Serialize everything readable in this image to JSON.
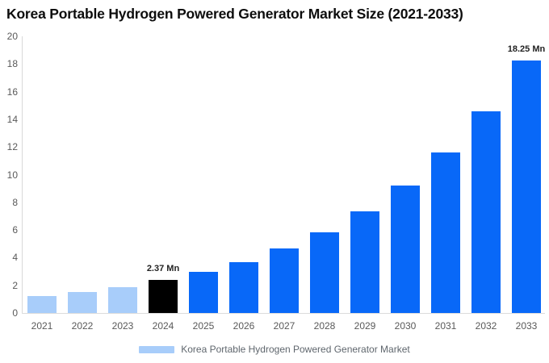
{
  "title": "Korea Portable Hydrogen Powered Generator Market Size (2021-2033)",
  "legend": {
    "label": "Korea Portable Hydrogen Powered Generator Market"
  },
  "colors": {
    "historical_bar": "#a8cdfa",
    "base_year_bar": "#000000",
    "forecast_bar": "#0868f8",
    "axis_line": "#d9d9d9",
    "tick_text": "#595959",
    "value_label_text": "#222222",
    "legend_text": "#5f666d",
    "title_text": "#0d0d0d"
  },
  "chart_data": {
    "type": "bar",
    "title": "Korea Portable Hydrogen Powered Generator Market Size (2021-2033)",
    "xlabel": "",
    "ylabel": "",
    "unit": "Mn",
    "categories": [
      "2021",
      "2022",
      "2023",
      "2024",
      "2025",
      "2026",
      "2027",
      "2028",
      "2029",
      "2030",
      "2031",
      "2032",
      "2033"
    ],
    "values": [
      1.2,
      1.5,
      1.85,
      2.37,
      2.95,
      3.7,
      4.65,
      5.85,
      7.35,
      9.2,
      11.6,
      14.55,
      18.25
    ],
    "bar_colors": [
      "#a8cdfa",
      "#a8cdfa",
      "#a8cdfa",
      "#000000",
      "#0868f8",
      "#0868f8",
      "#0868f8",
      "#0868f8",
      "#0868f8",
      "#0868f8",
      "#0868f8",
      "#0868f8",
      "#0868f8"
    ],
    "value_labels": [
      "",
      "",
      "",
      "2.37 Mn",
      "",
      "",
      "",
      "",
      "",
      "",
      "",
      "",
      "18.25 Mn"
    ],
    "ylim": [
      0,
      20
    ],
    "yticks": [
      0,
      2,
      4,
      6,
      8,
      10,
      12,
      14,
      16,
      18,
      20
    ],
    "grid": false,
    "legend_position": "bottom",
    "legend_entries": [
      "Korea Portable Hydrogen Powered Generator Market"
    ]
  }
}
